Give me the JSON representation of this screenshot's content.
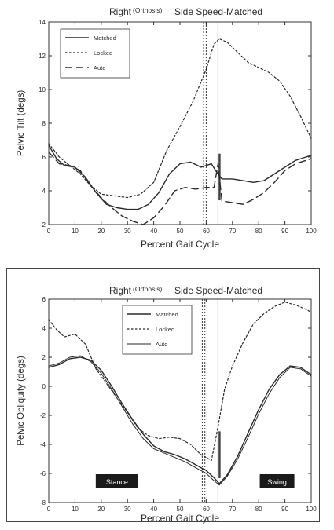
{
  "chart_data": [
    {
      "type": "line",
      "title": "Side Speed-Matched",
      "title_prefix": "Right",
      "title_superscript": "(Orthosis)",
      "xlabel": "Percent Gait Cycle",
      "ylabel": "Pelvic Tilt (degs)",
      "xlim": [
        0,
        100
      ],
      "ylim": [
        2,
        14
      ],
      "xticks": [
        "0",
        "10",
        "20",
        "30",
        "40",
        "50",
        "60",
        "70",
        "80",
        "90",
        "100"
      ],
      "yticks": [
        "2",
        "4",
        "6",
        "8",
        "10",
        "12",
        "14"
      ],
      "legend_position": "top-left",
      "vlines": [
        {
          "x": 59,
          "style": "dotted"
        },
        {
          "x": 60,
          "style": "dotted"
        },
        {
          "x": 64.5,
          "style": "solid"
        }
      ],
      "series": [
        {
          "name": "Matched",
          "style": "solid",
          "x": [
            0,
            3,
            6,
            10,
            14,
            18,
            22,
            26,
            30,
            34,
            38,
            42,
            46,
            50,
            54,
            58,
            62,
            64,
            66,
            70,
            74,
            78,
            82,
            86,
            90,
            94,
            98,
            100
          ],
          "y": [
            6.7,
            5.9,
            5.5,
            5.4,
            4.8,
            3.9,
            3.2,
            3.0,
            2.9,
            2.9,
            3.2,
            3.9,
            5.0,
            5.6,
            5.7,
            5.4,
            5.6,
            5.1,
            4.7,
            4.7,
            4.6,
            4.5,
            4.6,
            5.0,
            5.4,
            5.8,
            6.0,
            6.1
          ]
        },
        {
          "name": "Locked",
          "style": "dotted",
          "x": [
            0,
            4,
            8,
            12,
            16,
            20,
            25,
            30,
            35,
            40,
            45,
            50,
            55,
            60,
            63,
            65,
            68,
            72,
            76,
            80,
            84,
            88,
            92,
            96,
            100
          ],
          "y": [
            6.8,
            6.0,
            5.5,
            5.0,
            4.3,
            3.8,
            3.7,
            3.6,
            3.8,
            4.5,
            6.4,
            7.8,
            9.3,
            11.2,
            12.7,
            13.0,
            12.8,
            12.2,
            11.6,
            11.3,
            11.0,
            10.5,
            9.6,
            8.4,
            7.1
          ]
        },
        {
          "name": "Auto",
          "style": "dashed",
          "x": [
            0,
            4,
            8,
            12,
            16,
            20,
            24,
            28,
            32,
            36,
            40,
            44,
            48,
            52,
            56,
            60,
            63,
            64.5,
            66,
            70,
            74,
            78,
            82,
            86,
            90,
            94,
            98,
            100
          ],
          "y": [
            6.3,
            5.6,
            5.5,
            5.2,
            4.3,
            3.6,
            3.0,
            2.5,
            2.2,
            2.0,
            2.4,
            3.1,
            4.0,
            4.2,
            4.1,
            4.2,
            4.2,
            5.6,
            3.4,
            3.3,
            3.2,
            3.5,
            3.9,
            4.5,
            5.2,
            5.6,
            5.8,
            5.9
          ]
        }
      ]
    },
    {
      "type": "line",
      "title": "Side Speed-Matched",
      "title_prefix": "Right",
      "title_superscript": "(Orthosis)",
      "xlabel": "Percent Gait Cycle",
      "ylabel": "Pelvic Obliquity (degs)",
      "xlim": [
        0,
        100
      ],
      "ylim": [
        -8,
        6
      ],
      "xticks": [
        "0",
        "10",
        "20",
        "30",
        "40",
        "50",
        "60",
        "70",
        "80",
        "90",
        "100"
      ],
      "yticks": [
        "-8",
        "-6",
        "-4",
        "-2",
        "0",
        "2",
        "4",
        "6"
      ],
      "legend_position": "top-center",
      "vlines": [
        {
          "x": 58.5,
          "style": "dotted"
        },
        {
          "x": 59.5,
          "style": "dotted"
        },
        {
          "x": 64.5,
          "style": "solid"
        }
      ],
      "annotations": [
        {
          "text": "Stance",
          "x": 26
        },
        {
          "text": "Swing",
          "x": 87
        }
      ],
      "series": [
        {
          "name": "Matched",
          "style": "solid",
          "x": [
            0,
            4,
            8,
            12,
            16,
            20,
            24,
            28,
            32,
            36,
            40,
            44,
            48,
            52,
            56,
            60,
            63,
            65,
            68,
            72,
            76,
            80,
            84,
            88,
            92,
            96,
            100
          ],
          "y": [
            1.3,
            1.5,
            1.9,
            2.0,
            1.8,
            1.1,
            0.0,
            -1.2,
            -2.3,
            -3.3,
            -4.1,
            -4.5,
            -4.7,
            -5.0,
            -5.4,
            -5.8,
            -6.3,
            -6.7,
            -6.1,
            -4.8,
            -3.2,
            -1.6,
            -0.2,
            0.8,
            1.4,
            1.3,
            0.8
          ]
        },
        {
          "name": "Locked",
          "style": "dotted",
          "x": [
            0,
            3,
            6,
            10,
            14,
            18,
            22,
            26,
            30,
            34,
            38,
            42,
            46,
            50,
            54,
            58,
            62,
            64.5,
            67,
            70,
            74,
            78,
            82,
            86,
            90,
            94,
            98,
            100
          ],
          "y": [
            4.6,
            3.9,
            3.4,
            3.6,
            2.9,
            1.2,
            0.2,
            -0.8,
            -1.8,
            -2.9,
            -3.4,
            -3.6,
            -3.5,
            -3.6,
            -4.0,
            -4.7,
            -5.1,
            -2.8,
            -0.2,
            1.4,
            3.0,
            4.3,
            5.0,
            5.5,
            5.8,
            5.6,
            5.3,
            5.1
          ]
        },
        {
          "name": "Auto",
          "style": "solid-thin",
          "x": [
            0,
            4,
            8,
            12,
            16,
            20,
            24,
            28,
            32,
            36,
            40,
            44,
            48,
            52,
            56,
            60,
            63,
            65,
            68,
            72,
            76,
            80,
            84,
            88,
            92,
            96,
            100
          ],
          "y": [
            1.4,
            1.6,
            2.0,
            2.1,
            1.7,
            0.9,
            -0.2,
            -1.4,
            -2.6,
            -3.6,
            -4.3,
            -4.6,
            -4.9,
            -5.2,
            -5.6,
            -6.0,
            -6.5,
            -6.8,
            -6.2,
            -5.0,
            -3.5,
            -1.9,
            -0.5,
            0.6,
            1.3,
            1.2,
            0.7
          ]
        }
      ]
    }
  ]
}
